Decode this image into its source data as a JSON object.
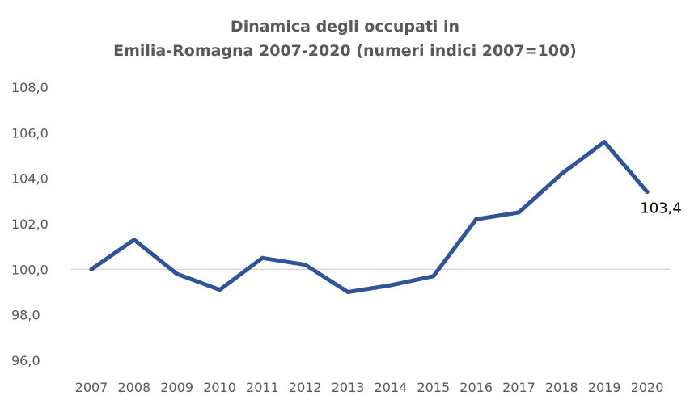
{
  "chart_data": {
    "type": "line",
    "title_line1": "Dinamica degli occupati in",
    "title_line2": "Emilia-Romagna 2007-2020 (numeri indici 2007=100)",
    "xlabel": "",
    "ylabel": "",
    "categories": [
      "2007",
      "2008",
      "2009",
      "2010",
      "2011",
      "2012",
      "2013",
      "2014",
      "2015",
      "2016",
      "2017",
      "2018",
      "2019",
      "2020"
    ],
    "series": [
      {
        "values": [
          100.0,
          101.3,
          99.8,
          99.1,
          100.5,
          100.2,
          99.0,
          99.3,
          99.7,
          102.2,
          102.5,
          104.2,
          105.6,
          103.4
        ]
      }
    ],
    "ylim": [
      96,
      108
    ],
    "yticks": [
      "96,0",
      "98,0",
      "100,0",
      "102,0",
      "104,0",
      "106,0",
      "108,0"
    ],
    "ytick_values": [
      96,
      98,
      100,
      102,
      104,
      106,
      108
    ],
    "reference_line": 100,
    "last_point_label": "103,4",
    "grid": false,
    "colors": {
      "line": "#2F5597",
      "reference": "#D9D9D9",
      "text": "#595959"
    }
  }
}
